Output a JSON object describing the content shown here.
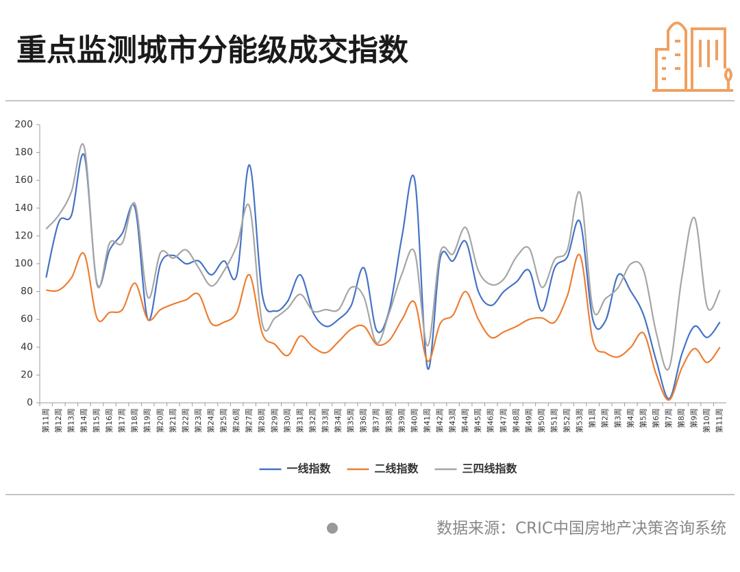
{
  "chart_data": {
    "type": "line",
    "title": "重点监测城市分能级成交指数",
    "source": "数据来源：CRIC中国房地产决策咨询系统",
    "categories": [
      "第11周",
      "第12周",
      "第13周",
      "第14周",
      "第15周",
      "第16周",
      "第17周",
      "第18周",
      "第19周",
      "第20周",
      "第21周",
      "第22周",
      "第23周",
      "第24周",
      "第25周",
      "第26周",
      "第27周",
      "第28周",
      "第29周",
      "第30周",
      "第31周",
      "第32周",
      "第33周",
      "第34周",
      "第35周",
      "第36周",
      "第37周",
      "第38周",
      "第39周",
      "第40周",
      "第41周",
      "第42周",
      "第43周",
      "第44周",
      "第45周",
      "第46周",
      "第47周",
      "第48周",
      "第49周",
      "第50周",
      "第51周",
      "第52周",
      "第53周",
      "第1周",
      "第2周",
      "第3周",
      "第4周",
      "第5周",
      "第6周",
      "第7周",
      "第8周",
      "第9周",
      "第10周",
      "第11周"
    ],
    "series": [
      {
        "name": "一线指数",
        "color": "#4472c4",
        "values": [
          90,
          130,
          135,
          178,
          86,
          110,
          122,
          140,
          60,
          100,
          106,
          100,
          102,
          92,
          102,
          92,
          171,
          78,
          66,
          73,
          92,
          65,
          55,
          60,
          70,
          97,
          52,
          67,
          120,
          160,
          25,
          104,
          102,
          116,
          80,
          70,
          80,
          87,
          95,
          66,
          97,
          105,
          130,
          60,
          59,
          92,
          80,
          63,
          30,
          3,
          35,
          55,
          47,
          58
        ]
      },
      {
        "name": "二线指数",
        "color": "#ed7d31",
        "values": [
          81,
          81,
          90,
          107,
          61,
          65,
          67,
          86,
          60,
          67,
          71,
          74,
          78,
          57,
          58,
          65,
          92,
          50,
          42,
          34,
          48,
          40,
          36,
          44,
          53,
          55,
          42,
          45,
          60,
          72,
          30,
          57,
          63,
          80,
          60,
          47,
          51,
          55,
          60,
          61,
          58,
          77,
          106,
          45,
          36,
          33,
          40,
          50,
          20,
          2,
          25,
          39,
          29,
          40
        ]
      },
      {
        "name": "三四线指数",
        "color": "#a5a5a5",
        "values": [
          125,
          135,
          152,
          184,
          85,
          115,
          115,
          143,
          76,
          108,
          104,
          110,
          97,
          84,
          95,
          113,
          141,
          57,
          61,
          68,
          78,
          66,
          67,
          67,
          83,
          76,
          43,
          65,
          93,
          108,
          41,
          108,
          107,
          126,
          95,
          85,
          89,
          105,
          111,
          83,
          103,
          110,
          151,
          68,
          75,
          83,
          100,
          95,
          50,
          25,
          90,
          133,
          69,
          81
        ]
      }
    ],
    "ylim": [
      0,
      200
    ],
    "yticks": [
      0,
      20,
      40,
      60,
      80,
      100,
      120,
      140,
      160,
      180,
      200
    ],
    "grid": false,
    "legend": "bottom"
  }
}
